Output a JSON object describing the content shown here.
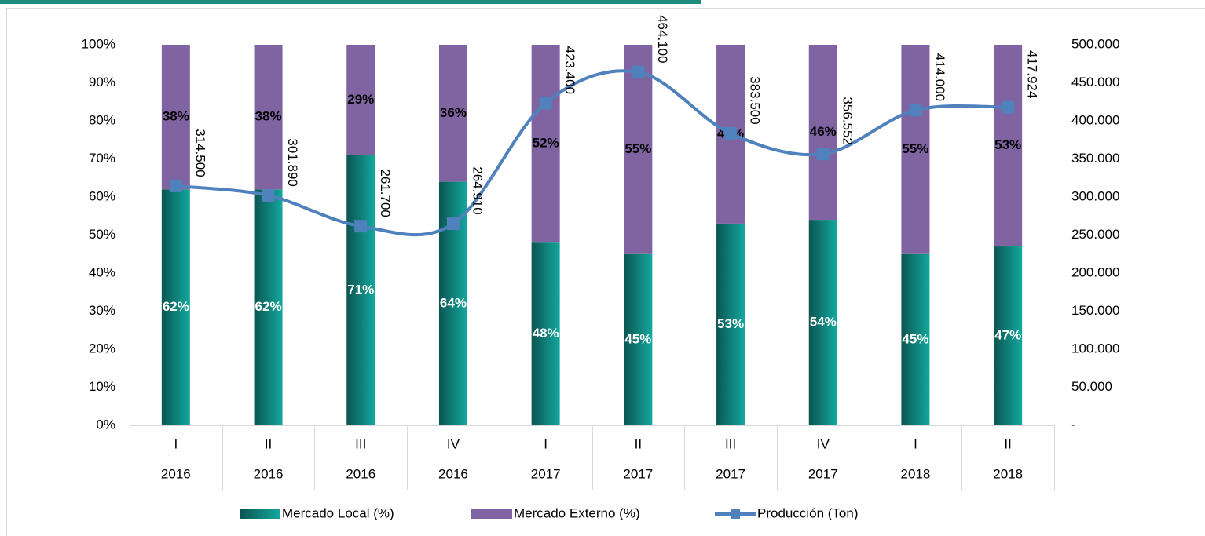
{
  "chart_data": {
    "type": "bar",
    "categories": [
      "I",
      "II",
      "III",
      "IV",
      "I",
      "II",
      "III",
      "IV",
      "I",
      "II"
    ],
    "years": [
      "2016",
      "2016",
      "2016",
      "2016",
      "2017",
      "2017",
      "2017",
      "2017",
      "2018",
      "2018"
    ],
    "series": [
      {
        "name": "Mercado Local (%)",
        "color": "#13a89e",
        "stack": true,
        "values": [
          62,
          62,
          71,
          64,
          48,
          45,
          53,
          54,
          45,
          47
        ],
        "value_labels": [
          "62%",
          "62%",
          "71%",
          "64%",
          "48%",
          "45%",
          "53%",
          "54%",
          "45%",
          "47%"
        ]
      },
      {
        "name": "Mercado Externo  (%)",
        "color": "#8064a2",
        "stack": true,
        "values": [
          38,
          38,
          29,
          36,
          52,
          55,
          47,
          46,
          55,
          53
        ],
        "value_labels": [
          "38%",
          "38%",
          "29%",
          "36%",
          "52%",
          "55%",
          "47%",
          "46%",
          "55%",
          "53%"
        ]
      },
      {
        "name": "Producción (Ton)",
        "color": "#4f81bd",
        "type": "line",
        "axis": "y2",
        "values": [
          314500,
          301890,
          261700,
          264910,
          423400,
          464100,
          383500,
          356552,
          414000,
          417924
        ],
        "value_labels": [
          "314.500",
          "301.890",
          "261.700",
          "264.910",
          "423.400",
          "464.100",
          "383.500",
          "356.552",
          "414.000",
          "417.924"
        ]
      }
    ],
    "ylim": [
      0,
      100
    ],
    "yticks": [
      {
        "value": 0,
        "label": "0%"
      },
      {
        "value": 10,
        "label": "10%"
      },
      {
        "value": 20,
        "label": "20%"
      },
      {
        "value": 30,
        "label": "30%"
      },
      {
        "value": 40,
        "label": "40%"
      },
      {
        "value": 50,
        "label": "50%"
      },
      {
        "value": 60,
        "label": "60%"
      },
      {
        "value": 70,
        "label": "70%"
      },
      {
        "value": 80,
        "label": "80%"
      },
      {
        "value": 90,
        "label": "90%"
      },
      {
        "value": 100,
        "label": "100%"
      }
    ],
    "y2lim": [
      0,
      500000
    ],
    "y2ticks": [
      {
        "value": 0,
        "label": "-"
      },
      {
        "value": 50000,
        "label": "50.000"
      },
      {
        "value": 100000,
        "label": "100.000"
      },
      {
        "value": 150000,
        "label": "150.000"
      },
      {
        "value": 200000,
        "label": "200.000"
      },
      {
        "value": 250000,
        "label": "250.000"
      },
      {
        "value": 300000,
        "label": "300.000"
      },
      {
        "value": 350000,
        "label": "350.000"
      },
      {
        "value": 400000,
        "label": "400.000"
      },
      {
        "value": 450000,
        "label": "450.000"
      },
      {
        "value": 500000,
        "label": "500.000"
      }
    ],
    "legend": "bottom"
  }
}
